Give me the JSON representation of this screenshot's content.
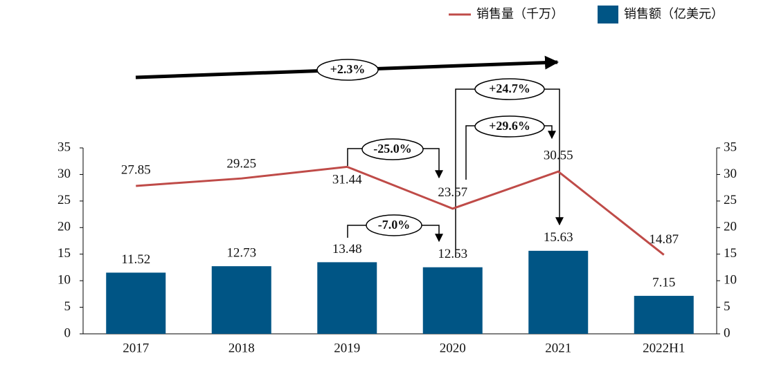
{
  "chart_data": {
    "type": "combo",
    "categories": [
      "2017",
      "2018",
      "2019",
      "2020",
      "2021",
      "2022H1"
    ],
    "series": [
      {
        "name": "销售量（千万）",
        "type": "line",
        "axis": "y2",
        "color": "#bf4b48",
        "values": [
          27.85,
          29.25,
          31.44,
          23.57,
          30.55,
          14.87
        ]
      },
      {
        "name": "销售额（亿美元）",
        "type": "bar",
        "color": "#005585",
        "values": [
          11.52,
          12.73,
          13.48,
          12.53,
          15.63,
          7.15
        ]
      }
    ],
    "ylim": [
      0,
      35
    ],
    "yticks": [
      0,
      5,
      10,
      15,
      20,
      25,
      30,
      35
    ],
    "y2lim": [
      0,
      35
    ],
    "y2ticks": [
      0,
      5,
      10,
      15,
      20,
      25,
      30,
      35
    ],
    "grid": false,
    "legend": "top-right",
    "annotations": [
      "+2.3%",
      "+24.7%",
      "+29.6%",
      "-25.0%",
      "-7.0%"
    ]
  }
}
